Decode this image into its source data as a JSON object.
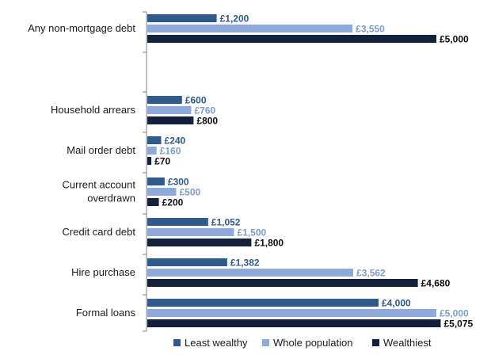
{
  "chart_data": {
    "type": "bar",
    "orientation": "horizontal",
    "categories": [
      [
        "Any non-mortgage debt"
      ],
      [],
      [
        "Household arrears"
      ],
      [
        "Mail order debt"
      ],
      [
        "Current account",
        "overdrawn"
      ],
      [
        "Credit card debt"
      ],
      [
        "Hire purchase"
      ],
      [
        "Formal loans"
      ]
    ],
    "series": [
      {
        "name": "Least wealthy",
        "color": "#2e5a8c",
        "label_color": "#2e5a8c",
        "values": [
          1200,
          null,
          600,
          240,
          300,
          1052,
          1382,
          4000
        ],
        "labels": [
          "£1,200",
          "",
          "£600",
          "£240",
          "£300",
          "£1,052",
          "£1,382",
          "£4,000"
        ]
      },
      {
        "name": "Whole population",
        "color": "#8eaadb",
        "label_color": "#7d9cc9",
        "values": [
          3550,
          null,
          760,
          160,
          500,
          1500,
          3562,
          5000
        ],
        "labels": [
          "£3,550",
          "",
          "£760",
          "£160",
          "£500",
          "£1,500",
          "£3,562",
          "£5,000"
        ]
      },
      {
        "name": "Wealthiest",
        "color": "#14213d",
        "label_color": "#0d0d0d",
        "values": [
          5000,
          null,
          800,
          70,
          200,
          1800,
          4680,
          5075
        ],
        "labels": [
          "£5,000",
          "",
          "£800",
          "£70",
          "£200",
          "£1,800",
          "£4,680",
          "£5,075"
        ]
      }
    ],
    "xlim": [
      0,
      5300
    ],
    "grid": false,
    "legend_position": "bottom"
  }
}
